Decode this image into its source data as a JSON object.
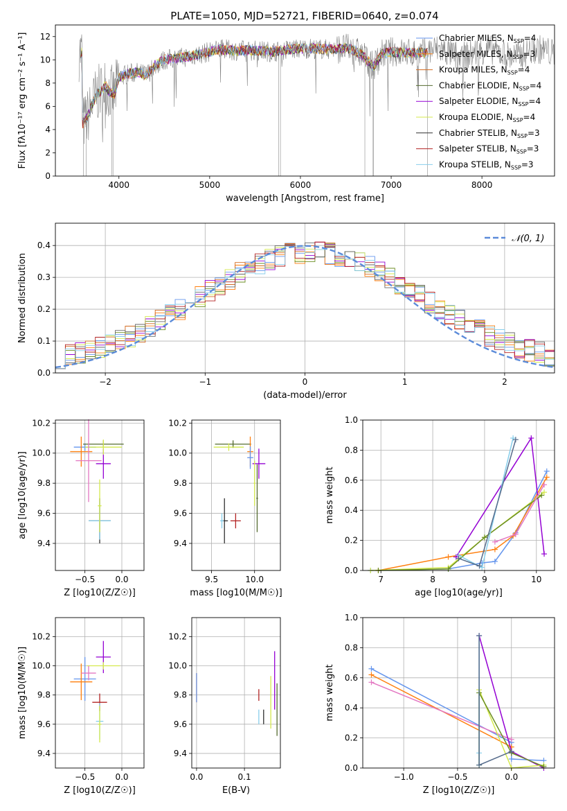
{
  "figure": {
    "title": "PLATE=1050, MJD=52721, FIBERID=0640, z=0.074",
    "series_colors": [
      "#6495ed",
      "#ff7f0e",
      "#d2691e",
      "#6b8e23",
      "#9400d3",
      "#d4e94d",
      "#696969",
      "#b22222",
      "#87ceeb"
    ]
  },
  "chart_data": [
    {
      "id": "spectrum",
      "type": "line",
      "title": "PLATE=1050, MJD=52721, FIBERID=0640, z=0.074",
      "xlabel": "wavelength [Angstrom, rest frame]",
      "ylabel": "Flux [fλ10⁻¹⁷ erg cm⁻² s⁻¹ A⁻¹]",
      "xlim": [
        3300,
        8800
      ],
      "ylim": [
        0,
        13
      ],
      "xticks": [
        4000,
        5000,
        6000,
        7000,
        8000
      ],
      "yticks": [
        0,
        2,
        4,
        6,
        8,
        10,
        12
      ],
      "grid": false,
      "legend_position": "upper-right",
      "data_series": {
        "name": "",
        "color": "#808080"
      },
      "series": [
        {
          "name": "Chabrier MILES, N_SSP=4",
          "color": "#6495ed"
        },
        {
          "name": "Salpeter MILES, N_SSP=3",
          "color": "#ff7f0e"
        },
        {
          "name": "Kroupa MILES, N_SSP=4",
          "color": "#d2691e"
        },
        {
          "name": "Chabrier ELODIE, N_SSP=4",
          "color": "#556b2f"
        },
        {
          "name": "Salpeter ELODIE, N_SSP=4",
          "color": "#9400d3"
        },
        {
          "name": "Kroupa ELODIE, N_SSP=4",
          "color": "#d4e94d"
        },
        {
          "name": "Chabrier STELIB, N_SSP=3",
          "color": "#2f2f2f"
        },
        {
          "name": "Salpeter STELIB, N_SSP=3",
          "color": "#b22222"
        },
        {
          "name": "Kroupa STELIB, N_SSP=3",
          "color": "#87ceeb"
        }
      ],
      "continuum": [
        [
          3600,
          4.5
        ],
        [
          3650,
          5.0
        ],
        [
          3700,
          6.0
        ],
        [
          3750,
          7.0
        ],
        [
          3800,
          7.3
        ],
        [
          3850,
          7.8
        ],
        [
          3900,
          7.2
        ],
        [
          3950,
          7.0
        ],
        [
          4000,
          8.5
        ],
        [
          4100,
          8.8
        ],
        [
          4200,
          8.9
        ],
        [
          4300,
          8.7
        ],
        [
          4400,
          9.5
        ],
        [
          4500,
          10.0
        ],
        [
          4700,
          10.2
        ],
        [
          4900,
          10.5
        ],
        [
          5100,
          10.9
        ],
        [
          5300,
          10.8
        ],
        [
          5500,
          10.8
        ],
        [
          5700,
          10.7
        ],
        [
          5900,
          10.9
        ],
        [
          6100,
          11.0
        ],
        [
          6300,
          10.9
        ],
        [
          6500,
          11.0
        ],
        [
          6600,
          10.8
        ],
        [
          6700,
          10.3
        ],
        [
          6800,
          9.4
        ],
        [
          6900,
          10.5
        ],
        [
          7000,
          10.7
        ],
        [
          7200,
          10.6
        ],
        [
          7400,
          10.6
        ]
      ]
    },
    {
      "id": "residuals",
      "type": "step",
      "xlabel": "(data-model)/error",
      "ylabel": "Normed distribution",
      "xlim": [
        -2.5,
        2.5
      ],
      "ylim": [
        0,
        0.47
      ],
      "xticks": [
        -2,
        -1,
        0,
        1,
        2
      ],
      "yticks": [
        0.0,
        0.1,
        0.2,
        0.3,
        0.4
      ],
      "grid": true,
      "legend_position": "upper-right",
      "reference": {
        "name": "𝒩(0, 1)",
        "color": "#5b8bd9"
      }
    },
    {
      "id": "age_vs_Z",
      "type": "errorbar",
      "xlabel": "Z [log10(Z/Z☉)]",
      "ylabel": "age  [log10(age/yr)]",
      "xlim": [
        -0.9,
        0.3
      ],
      "ylim": [
        9.22,
        10.22
      ],
      "xticks": [
        -0.5,
        0.0
      ],
      "yticks": [
        9.4,
        9.6,
        9.8,
        10.0,
        10.2
      ],
      "grid": true,
      "points": [
        {
          "x": -0.5,
          "y": 10.04,
          "xerr": 0.3,
          "yerr": 0.05,
          "color": "#6495ed"
        },
        {
          "x": -0.55,
          "y": 10.01,
          "xerr": 0.3,
          "yerr": 0.2,
          "color": "#ff7f0e"
        },
        {
          "x": -0.25,
          "y": 10.06,
          "xerr": 0.55,
          "yerr": 0.05,
          "color": "#556b2f"
        },
        {
          "x": -0.25,
          "y": 9.93,
          "xerr": 0.2,
          "yerr": 0.2,
          "color": "#9400d3"
        },
        {
          "x": -0.25,
          "y": 10.04,
          "xerr": 0.5,
          "yerr": 0.1,
          "color": "#d4e94d"
        },
        {
          "x": -0.3,
          "y": 9.55,
          "xerr": 0.3,
          "yerr": 0.3,
          "color": "#2f2f2f"
        },
        {
          "x": -0.3,
          "y": 9.55,
          "xerr": 0.3,
          "yerr": 0.25,
          "color": "#87ceeb"
        },
        {
          "x": -0.45,
          "y": 9.95,
          "xerr": 0.35,
          "yerr": 0.55,
          "color": "#e377c2"
        },
        {
          "x": -0.3,
          "y": 9.65,
          "xerr": 0.05,
          "yerr": 0.35,
          "color": "#d4e94d"
        }
      ]
    },
    {
      "id": "age_vs_mass",
      "type": "errorbar",
      "xlabel": "mass [log10(M/M☉)]",
      "ylabel": "",
      "xlim": [
        9.27,
        10.3
      ],
      "ylim": [
        9.22,
        10.22
      ],
      "xticks": [
        9.5,
        10.0
      ],
      "yticks": [
        9.4,
        9.6,
        9.8,
        10.0,
        10.2
      ],
      "grid": true,
      "points": [
        {
          "x": 9.75,
          "y": 10.06,
          "xerr": 0.42,
          "yerr": 0.05,
          "color": "#556b2f"
        },
        {
          "x": 9.7,
          "y": 10.04,
          "xerr": 0.35,
          "yerr": 0.05,
          "color": "#d4e94d"
        },
        {
          "x": 9.95,
          "y": 10.01,
          "xerr": 0.07,
          "yerr": 0.2,
          "color": "#ff7f0e"
        },
        {
          "x": 10.05,
          "y": 9.93,
          "xerr": 0.15,
          "yerr": 0.2,
          "color": "#9400d3"
        },
        {
          "x": 9.95,
          "y": 9.97,
          "xerr": 0.07,
          "yerr": 0.15,
          "color": "#6495ed"
        },
        {
          "x": 9.65,
          "y": 9.55,
          "xerr": 0.08,
          "yerr": 0.3,
          "color": "#2f2f2f"
        },
        {
          "x": 9.62,
          "y": 9.55,
          "xerr": 0.04,
          "yerr": 0.1,
          "color": "#87ceeb"
        },
        {
          "x": 9.78,
          "y": 9.55,
          "xerr": 0.12,
          "yerr": 0.1,
          "color": "#b22222"
        },
        {
          "x": 10.03,
          "y": 9.7,
          "xerr": 0.02,
          "yerr": 0.45,
          "color": "#556b2f"
        },
        {
          "x": 10.0,
          "y": 9.8,
          "xerr": 0.02,
          "yerr": 0.3,
          "color": "#d4e94d"
        }
      ]
    },
    {
      "id": "weight_vs_age",
      "type": "line",
      "xlabel": "age  [log10(age/yr)]",
      "ylabel": "mass weight",
      "xlim": [
        6.65,
        10.35
      ],
      "ylim": [
        0,
        1.0
      ],
      "xticks": [
        7,
        8,
        9,
        10
      ],
      "yticks": [
        0.0,
        0.2,
        0.4,
        0.6,
        0.8,
        1.0
      ],
      "grid": true,
      "series": [
        {
          "color": "#6495ed",
          "x": [
            6.8,
            8.3,
            8.95,
            9.2,
            9.6,
            10.2
          ],
          "y": [
            0.0,
            0.01,
            0.05,
            0.06,
            0.25,
            0.66
          ]
        },
        {
          "color": "#ff7f0e",
          "x": [
            6.95,
            8.3,
            9.2,
            9.55,
            10.2
          ],
          "y": [
            0.0,
            0.09,
            0.14,
            0.23,
            0.62
          ]
        },
        {
          "color": "#9400d3",
          "x": [
            8.45,
            9.9,
            10.15
          ],
          "y": [
            0.09,
            0.88,
            0.11
          ]
        },
        {
          "color": "#d4e94d",
          "x": [
            6.8,
            8.3,
            9.0,
            10.15
          ],
          "y": [
            0.0,
            0.02,
            0.22,
            0.52
          ]
        },
        {
          "color": "#6b8e23",
          "x": [
            6.95,
            8.3,
            9.0,
            10.1
          ],
          "y": [
            0.0,
            0.01,
            0.22,
            0.5
          ]
        },
        {
          "color": "#87ceeb",
          "x": [
            8.5,
            8.95,
            9.55
          ],
          "y": [
            0.1,
            0.02,
            0.88
          ]
        },
        {
          "color": "#556b8b",
          "x": [
            8.5,
            8.9,
            9.6
          ],
          "y": [
            0.08,
            0.03,
            0.87
          ]
        },
        {
          "color": "#e377c2",
          "x": [
            9.2,
            9.6,
            10.15
          ],
          "y": [
            0.19,
            0.24,
            0.57
          ]
        }
      ]
    },
    {
      "id": "mass_vs_Z",
      "type": "errorbar",
      "xlabel": "Z [log10(Z/Z☉)]",
      "ylabel": "mass [log10(M/M☉)]",
      "xlim": [
        -0.9,
        0.3
      ],
      "ylim": [
        9.3,
        10.33
      ],
      "xticks": [
        -0.5,
        0.0
      ],
      "yticks": [
        9.4,
        9.6,
        9.8,
        10.0,
        10.2
      ],
      "grid": true,
      "points": [
        {
          "x": -0.5,
          "y": 9.91,
          "xerr": 0.3,
          "yerr": 0.3,
          "color": "#6495ed"
        },
        {
          "x": -0.55,
          "y": 9.89,
          "xerr": 0.3,
          "yerr": 0.25,
          "color": "#ff7f0e"
        },
        {
          "x": -0.25,
          "y": 10.06,
          "xerr": 0.2,
          "yerr": 0.22,
          "color": "#9400d3"
        },
        {
          "x": -0.25,
          "y": 10.0,
          "xerr": 0.45,
          "yerr": 0.05,
          "color": "#d4e94d"
        },
        {
          "x": -0.3,
          "y": 9.75,
          "xerr": 0.2,
          "yerr": 0.12,
          "color": "#b22222"
        },
        {
          "x": -0.3,
          "y": 9.62,
          "xerr": 0.1,
          "yerr": 0.25,
          "color": "#87ceeb"
        },
        {
          "x": -0.45,
          "y": 9.95,
          "xerr": 0.2,
          "yerr": 0.1,
          "color": "#e377c2"
        },
        {
          "x": -0.3,
          "y": 9.6,
          "xerr": 0.05,
          "yerr": 0.25,
          "color": "#d4e94d"
        }
      ]
    },
    {
      "id": "mass_vs_ebv",
      "type": "errorbar",
      "xlabel": "E(B-V)",
      "ylabel": "",
      "xlim": [
        -0.01,
        0.175
      ],
      "ylim": [
        9.3,
        10.33
      ],
      "xticks": [
        0.0,
        0.1
      ],
      "yticks": [
        9.4,
        9.6,
        9.8,
        10.0,
        10.2
      ],
      "grid": true,
      "points": [
        {
          "x": 0.0,
          "y": 9.85,
          "xerr": 0.0,
          "yerr": 0.2,
          "color": "#ff7f0e"
        },
        {
          "x": 0.0,
          "y": 9.85,
          "xerr": 0.0,
          "yerr": 0.2,
          "color": "#6495ed"
        },
        {
          "x": 0.13,
          "y": 9.8,
          "xerr": 0.0,
          "yerr": 0.08,
          "color": "#b22222"
        },
        {
          "x": 0.13,
          "y": 9.65,
          "xerr": 0.0,
          "yerr": 0.1,
          "color": "#87ceeb"
        },
        {
          "x": 0.14,
          "y": 9.65,
          "xerr": 0.0,
          "yerr": 0.1,
          "color": "#2f2f2f"
        },
        {
          "x": 0.155,
          "y": 9.75,
          "xerr": 0.0,
          "yerr": 0.36,
          "color": "#d4e94d"
        },
        {
          "x": 0.163,
          "y": 9.9,
          "xerr": 0.0,
          "yerr": 0.4,
          "color": "#9400d3"
        },
        {
          "x": 0.168,
          "y": 9.7,
          "xerr": 0.0,
          "yerr": 0.36,
          "color": "#556b2f"
        }
      ]
    },
    {
      "id": "weight_vs_Z",
      "type": "line",
      "xlabel": "Z [log10(Z/Z☉)]",
      "ylabel": "mass weight",
      "xlim": [
        -1.38,
        0.4
      ],
      "ylim": [
        0,
        1.0
      ],
      "xticks": [
        -1.0,
        -0.5,
        0.0
      ],
      "yticks": [
        0.0,
        0.2,
        0.4,
        0.6,
        0.8,
        1.0
      ],
      "grid": true,
      "series": [
        {
          "color": "#6495ed",
          "x": [
            -1.3,
            0.0,
            0.0,
            0.3
          ],
          "y": [
            0.66,
            0.17,
            0.06,
            0.05
          ]
        },
        {
          "color": "#ff7f0e",
          "x": [
            -1.3,
            0.0,
            0.0
          ],
          "y": [
            0.62,
            0.14,
            0.1
          ]
        },
        {
          "color": "#e377c2",
          "x": [
            -1.3,
            0.0
          ],
          "y": [
            0.57,
            0.19
          ]
        },
        {
          "color": "#9400d3",
          "x": [
            -0.3,
            0.0,
            0.3
          ],
          "y": [
            0.88,
            0.11,
            0.0
          ]
        },
        {
          "color": "#d4e94d",
          "x": [
            -0.3,
            -0.3,
            0.0,
            0.3
          ],
          "y": [
            0.02,
            0.52,
            0.0,
            0.02
          ]
        },
        {
          "color": "#6b8e23",
          "x": [
            -0.3,
            -0.3,
            0.0,
            0.3
          ],
          "y": [
            0.02,
            0.5,
            0.1,
            0.01
          ]
        },
        {
          "color": "#87ceeb",
          "x": [
            -0.3,
            -0.3,
            -0.3
          ],
          "y": [
            0.02,
            0.88,
            0.1
          ]
        },
        {
          "color": "#556b8b",
          "x": [
            -0.3,
            -0.3,
            0.0
          ],
          "y": [
            0.88,
            0.02,
            0.11
          ]
        }
      ]
    }
  ]
}
